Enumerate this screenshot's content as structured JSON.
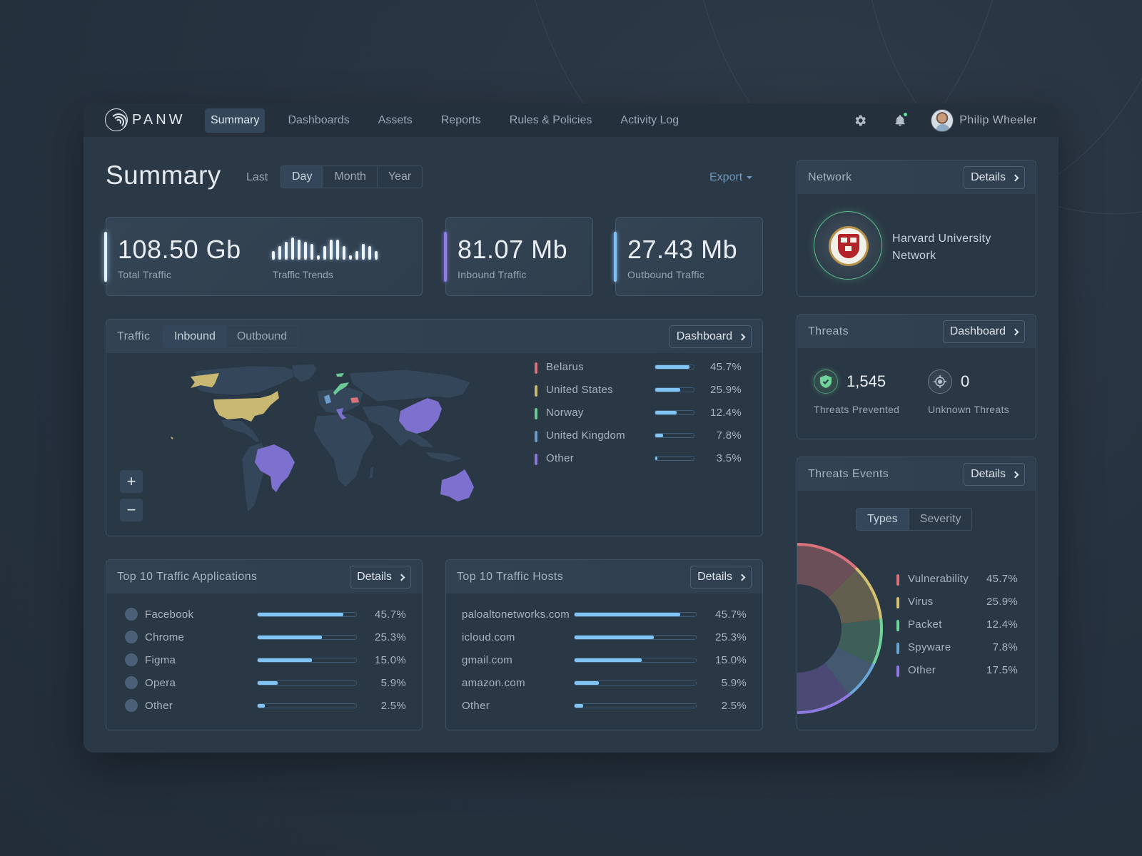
{
  "nav": {
    "logo_text": "PANW",
    "items": [
      {
        "label": "Summary",
        "active": true
      },
      {
        "label": "Dashboards",
        "active": false
      },
      {
        "label": "Assets",
        "active": false
      },
      {
        "label": "Reports",
        "active": false
      },
      {
        "label": "Rules & Policies",
        "active": false
      },
      {
        "label": "Activity Log",
        "active": false
      }
    ],
    "user_name": "Philip Wheeler"
  },
  "header": {
    "title": "Summary",
    "range_label": "Last",
    "range_options": [
      "Day",
      "Month",
      "Year"
    ],
    "range_selected": "Day",
    "export_label": "Export"
  },
  "stats": {
    "total": {
      "value": "108.50 Gb",
      "label": "Total Traffic",
      "accent": "#cfe9ff"
    },
    "trend_label": "Traffic Trends",
    "trend_bars": [
      4,
      6,
      8,
      10,
      9,
      8,
      7,
      2,
      6,
      9,
      9,
      6,
      2,
      4,
      7,
      6,
      4
    ],
    "inbound": {
      "value": "81.07 Mb",
      "label": "Inbound Traffic",
      "accent": "#8d7ce8"
    },
    "outbound": {
      "value": "27.43 Mb",
      "label": "Outbound Traffic",
      "accent": "#7ec2f4"
    }
  },
  "traffic": {
    "title": "Traffic",
    "tabs": [
      "Inbound",
      "Outbound"
    ],
    "tab_selected": "Inbound",
    "button_label": "Dashboard",
    "zoom_in": "+",
    "zoom_out": "−",
    "countries": [
      {
        "name": "Belarus",
        "pct": "45.7%",
        "fill": 88,
        "color": "#d9727a"
      },
      {
        "name": "United States",
        "pct": "25.9%",
        "fill": 65,
        "color": "#c9b871"
      },
      {
        "name": "Norway",
        "pct": "12.4%",
        "fill": 55,
        "color": "#6cc995"
      },
      {
        "name": "United Kingdom",
        "pct": "7.8%",
        "fill": 20,
        "color": "#6b9ccc"
      },
      {
        "name": "Other",
        "pct": "3.5%",
        "fill": 6,
        "color": "#8b78d8"
      }
    ]
  },
  "apps": {
    "title": "Top 10 Traffic Applications",
    "button_label": "Details",
    "rows": [
      {
        "name": "Facebook",
        "pct": "45.7%",
        "fill": 87
      },
      {
        "name": "Chrome",
        "pct": "25.3%",
        "fill": 65
      },
      {
        "name": "Figma",
        "pct": "15.0%",
        "fill": 55
      },
      {
        "name": "Opera",
        "pct": "5.9%",
        "fill": 20
      },
      {
        "name": "Other",
        "pct": "2.5%",
        "fill": 7
      }
    ]
  },
  "hosts": {
    "title": "Top 10 Traffic Hosts",
    "button_label": "Details",
    "rows": [
      {
        "name": "paloaltonetworks.com",
        "pct": "45.7%",
        "fill": 87
      },
      {
        "name": "icloud.com",
        "pct": "25.3%",
        "fill": 65
      },
      {
        "name": "gmail.com",
        "pct": "15.0%",
        "fill": 55
      },
      {
        "name": "amazon.com",
        "pct": "5.9%",
        "fill": 20
      },
      {
        "name": "Other",
        "pct": "2.5%",
        "fill": 7
      }
    ]
  },
  "network": {
    "title": "Network",
    "button_label": "Details",
    "name": "Harvard University Network"
  },
  "threats": {
    "title": "Threats",
    "button_label": "Dashboard",
    "prevented": {
      "value": "1,545",
      "label": "Threats Prevented"
    },
    "unknown": {
      "value": "0",
      "label": "Unknown Threats"
    }
  },
  "threat_events": {
    "title": "Threats Events",
    "button_label": "Details",
    "tabs": [
      "Types",
      "Severity"
    ],
    "tab_selected": "Types",
    "types": [
      {
        "name": "Vulnerability",
        "pct": "45.7%",
        "color": "#d9727a",
        "fill": "#6a4f59"
      },
      {
        "name": "Virus",
        "pct": "25.9%",
        "color": "#d4c172",
        "fill": "#625f4f"
      },
      {
        "name": "Packet",
        "pct": "12.4%",
        "color": "#6fd39a",
        "fill": "#3d5f58"
      },
      {
        "name": "Spyware",
        "pct": "7.8%",
        "color": "#6aa7d6",
        "fill": "#42596f"
      },
      {
        "name": "Other",
        "pct": "17.5%",
        "color": "#8e7ae0",
        "fill": "#4b4a74"
      }
    ]
  }
}
